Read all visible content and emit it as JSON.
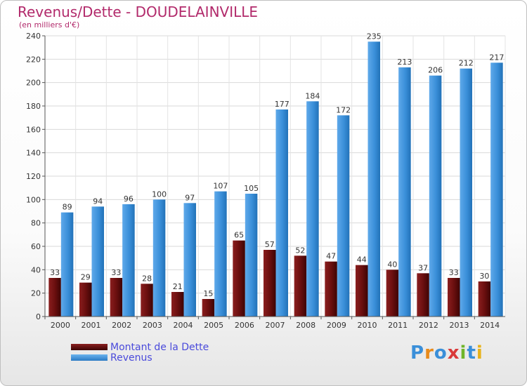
{
  "title": "Revenus/Dette - DOUDELAINVILLE",
  "subtitle": "(en milliers d'€)",
  "brand": "Proxiti",
  "colors": {
    "title": "#b22a6b",
    "dette": "#6b0f0f",
    "revenus": "#3a8fd9",
    "legend_text": "#4a4adb"
  },
  "legend": [
    {
      "label": "Montant de la Dette",
      "color": "#6b0f0f"
    },
    {
      "label": "Revenus",
      "color": "#3a8fd9"
    }
  ],
  "chart_data": {
    "type": "bar",
    "categories": [
      "2000",
      "2001",
      "2002",
      "2003",
      "2004",
      "2005",
      "2006",
      "2007",
      "2008",
      "2009",
      "2010",
      "2011",
      "2012",
      "2013",
      "2014"
    ],
    "series": [
      {
        "name": "Montant de la Dette",
        "values": [
          33,
          29,
          33,
          28,
          21,
          15,
          65,
          57,
          52,
          47,
          44,
          40,
          37,
          33,
          30
        ]
      },
      {
        "name": "Revenus",
        "values": [
          89,
          94,
          96,
          100,
          97,
          107,
          105,
          177,
          184,
          172,
          235,
          213,
          206,
          212,
          217
        ]
      }
    ],
    "ylim": [
      0,
      240
    ],
    "yticks": [
      0,
      20,
      40,
      60,
      80,
      100,
      120,
      140,
      160,
      180,
      200,
      220,
      240
    ],
    "grid": true,
    "legend_position": "bottom-left"
  }
}
